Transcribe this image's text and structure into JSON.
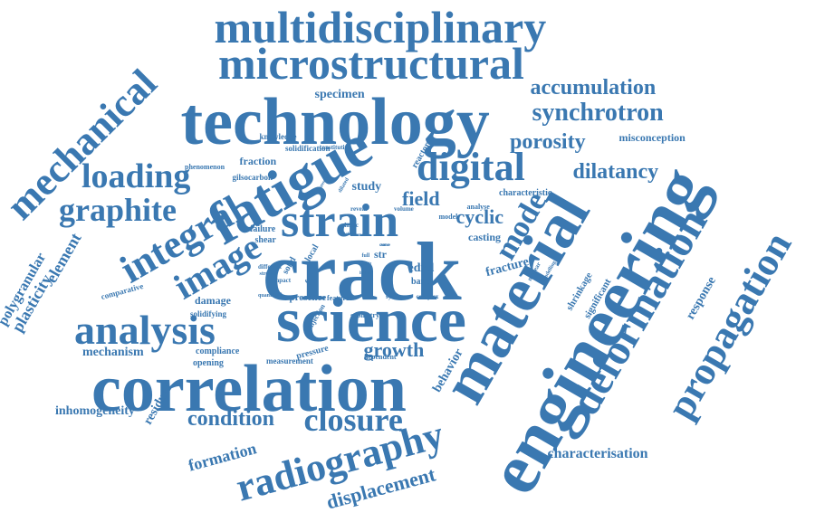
{
  "palette": {
    "word_color": "#3a78b1",
    "background": "#ffffff"
  },
  "words": [
    {
      "text": "crack",
      "weight": 1.0
    },
    {
      "text": "engineering",
      "weight": 0.98
    },
    {
      "text": "technology",
      "weight": 0.85
    },
    {
      "text": "science",
      "weight": 0.8
    },
    {
      "text": "correlation",
      "weight": 0.82
    },
    {
      "text": "material",
      "weight": 0.8
    },
    {
      "text": "fatigue",
      "weight": 0.72
    },
    {
      "text": "multidisciplinary",
      "weight": 0.62
    },
    {
      "text": "microstructural",
      "weight": 0.6
    },
    {
      "text": "strain",
      "weight": 0.62
    },
    {
      "text": "deformation",
      "weight": 0.58
    },
    {
      "text": "propagation",
      "weight": 0.56
    },
    {
      "text": "analysis",
      "weight": 0.58
    },
    {
      "text": "radiography",
      "weight": 0.56
    },
    {
      "text": "integral",
      "weight": 0.55
    },
    {
      "text": "mechanical",
      "weight": 0.5
    },
    {
      "text": "digital",
      "weight": 0.5
    },
    {
      "text": "image",
      "weight": 0.48
    },
    {
      "text": "loading",
      "weight": 0.45
    },
    {
      "text": "graphite",
      "weight": 0.42
    },
    {
      "text": "closure",
      "weight": 0.42
    },
    {
      "text": "mode",
      "weight": 0.4
    },
    {
      "text": "synchrotron",
      "weight": 0.34
    },
    {
      "text": "accumulation",
      "weight": 0.3
    },
    {
      "text": "dilatancy",
      "weight": 0.3
    },
    {
      "text": "porosity",
      "weight": 0.28
    },
    {
      "text": "displacement",
      "weight": 0.3
    },
    {
      "text": "condition",
      "weight": 0.28
    },
    {
      "text": "growth",
      "weight": 0.26
    },
    {
      "text": "field",
      "weight": 0.28
    },
    {
      "text": "cyclic",
      "weight": 0.26
    },
    {
      "text": "formation",
      "weight": 0.22
    },
    {
      "text": "element",
      "weight": 0.22
    },
    {
      "text": "plasticity",
      "weight": 0.2
    },
    {
      "text": "polygranular",
      "weight": 0.2
    },
    {
      "text": "residual",
      "weight": 0.18
    },
    {
      "text": "response",
      "weight": 0.18
    },
    {
      "text": "characterisation",
      "weight": 0.18
    },
    {
      "text": "inhomogeneity",
      "weight": 0.16
    },
    {
      "text": "mechanism",
      "weight": 0.16
    },
    {
      "text": "fracture",
      "weight": 0.16
    },
    {
      "text": "specimen",
      "weight": 0.14
    },
    {
      "text": "misconception",
      "weight": 0.13
    },
    {
      "text": "behavior",
      "weight": 0.12
    },
    {
      "text": "edxd",
      "weight": 0.13
    },
    {
      "text": "fraction",
      "weight": 0.12
    },
    {
      "text": "study",
      "weight": 0.12
    },
    {
      "text": "casting",
      "weight": 0.11
    },
    {
      "text": "damage",
      "weight": 0.12
    },
    {
      "text": "shrinkage",
      "weight": 0.09
    },
    {
      "text": "significant",
      "weight": 0.09
    },
    {
      "text": "comparative",
      "weight": 0.09
    },
    {
      "text": "opening",
      "weight": 0.09
    },
    {
      "text": "solidifying",
      "weight": 0.08
    },
    {
      "text": "pressure",
      "weight": 0.09
    },
    {
      "text": "measurement",
      "weight": 0.08
    },
    {
      "text": "compliance",
      "weight": 0.08
    },
    {
      "text": "characteristic",
      "weight": 0.08
    },
    {
      "text": "failure",
      "weight": 0.08
    },
    {
      "text": "shear",
      "weight": 0.08
    },
    {
      "text": "reactor",
      "weight": 0.08
    },
    {
      "text": "solidification",
      "weight": 0.07
    },
    {
      "text": "phenomenon",
      "weight": 0.06
    },
    {
      "text": "gilsocarbon",
      "weight": 0.06
    },
    {
      "text": "knowledge",
      "weight": 0.07
    },
    {
      "text": "presence",
      "weight": 0.09
    },
    {
      "text": "band",
      "weight": 0.08
    },
    {
      "text": "geometry",
      "weight": 0.06
    },
    {
      "text": "dependent",
      "weight": 0.06
    },
    {
      "text": "injection",
      "weight": 0.06
    },
    {
      "text": "feature",
      "weight": 0.06
    },
    {
      "text": "system",
      "weight": 0.06
    },
    {
      "text": "complex",
      "weight": 0.05
    },
    {
      "text": "analyse",
      "weight": 0.06
    },
    {
      "text": "model",
      "weight": 0.06
    },
    {
      "text": "volume",
      "weight": 0.06
    },
    {
      "text": "reveal",
      "weight": 0.06
    },
    {
      "text": "plastic",
      "weight": 0.06
    },
    {
      "text": "local",
      "weight": 0.08
    },
    {
      "text": "force",
      "weight": 0.08
    },
    {
      "text": "solid",
      "weight": 0.08
    },
    {
      "text": "impact",
      "weight": 0.06
    },
    {
      "text": "different",
      "weight": 0.06
    },
    {
      "text": "stresses",
      "weight": 0.05
    },
    {
      "text": "quantified",
      "weight": 0.05
    },
    {
      "text": "nuclear",
      "weight": 0.06
    },
    {
      "text": "modelling",
      "weight": 0.05
    },
    {
      "text": "constitutive",
      "weight": 0.05
    },
    {
      "text": "dilated",
      "weight": 0.05
    },
    {
      "text": "intensity",
      "weight": 0.04
    },
    {
      "text": "full",
      "weight": 0.05
    },
    {
      "text": "str",
      "weight": 0.06
    },
    {
      "text": "curve",
      "weight": 0.04
    },
    {
      "text": "zone",
      "weight": 0.04
    },
    {
      "text": "higher",
      "weight": 0.04
    },
    {
      "text": "result",
      "weight": 0.04
    },
    {
      "text": "defect",
      "weight": 0.04
    },
    {
      "text": "thermal",
      "weight": 0.04
    }
  ]
}
